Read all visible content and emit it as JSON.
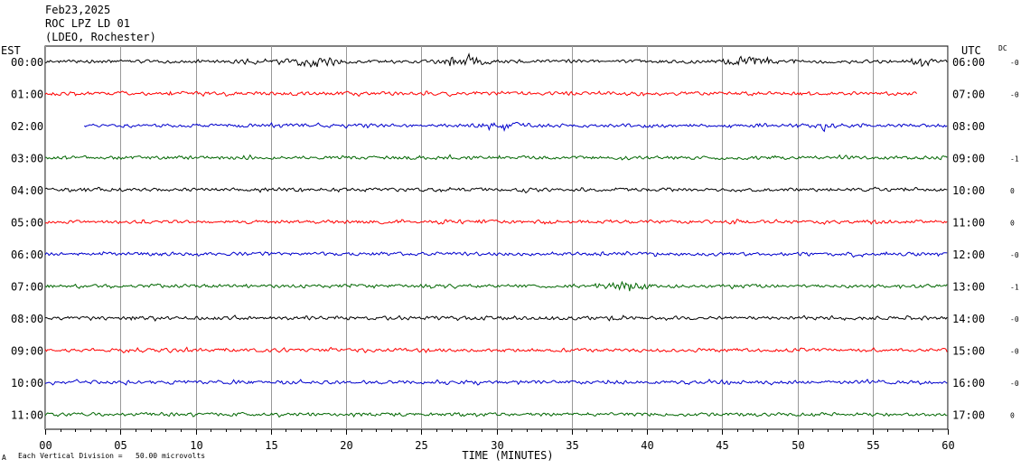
{
  "header": {
    "date": "Feb23,2025",
    "station": "ROC LPZ LD 01",
    "network": "(LDEO, Rochester)",
    "left_zone": "EST",
    "right_zone": "UTC",
    "dc_label": "DC"
  },
  "footer": {
    "scale_note": "Each Vertical Division =   50.00 microvolts",
    "mark": "A"
  },
  "chart_data": {
    "type": "line",
    "title": "",
    "xlabel": "TIME (MINUTES)",
    "ylabel": "",
    "xlim": [
      0,
      60
    ],
    "x_ticks": [
      "00",
      "05",
      "10",
      "15",
      "20",
      "25",
      "30",
      "35",
      "40",
      "45",
      "50",
      "55",
      "60"
    ],
    "grid": true,
    "series": [
      {
        "left_label": "00:00",
        "right_label": "06:00",
        "dc": "-0",
        "color": "#000000",
        "start_min": 0,
        "end_min": 60
      },
      {
        "left_label": "01:00",
        "right_label": "07:00",
        "dc": "-0",
        "color": "#ff0000",
        "start_min": 0,
        "end_min": 58
      },
      {
        "left_label": "02:00",
        "right_label": "08:00",
        "dc": "",
        "color": "#0000cc",
        "start_min": 2.6,
        "end_min": 60
      },
      {
        "left_label": "03:00",
        "right_label": "09:00",
        "dc": "-1",
        "color": "#006600",
        "start_min": 0,
        "end_min": 60
      },
      {
        "left_label": "04:00",
        "right_label": "10:00",
        "dc": "0",
        "color": "#000000",
        "start_min": 0,
        "end_min": 60
      },
      {
        "left_label": "05:00",
        "right_label": "11:00",
        "dc": "0",
        "color": "#ff0000",
        "start_min": 0,
        "end_min": 60
      },
      {
        "left_label": "06:00",
        "right_label": "12:00",
        "dc": "-0",
        "color": "#0000cc",
        "start_min": 0,
        "end_min": 60
      },
      {
        "left_label": "07:00",
        "right_label": "13:00",
        "dc": "-1",
        "color": "#006600",
        "start_min": 0,
        "end_min": 60
      },
      {
        "left_label": "08:00",
        "right_label": "14:00",
        "dc": "-0",
        "color": "#000000",
        "start_min": 0,
        "end_min": 60
      },
      {
        "left_label": "09:00",
        "right_label": "15:00",
        "dc": "-0",
        "color": "#ff0000",
        "start_min": 0,
        "end_min": 60
      },
      {
        "left_label": "10:00",
        "right_label": "16:00",
        "dc": "-0",
        "color": "#0000cc",
        "start_min": 0,
        "end_min": 60
      },
      {
        "left_label": "11:00",
        "right_label": "17:00",
        "dc": "0",
        "color": "#006600",
        "start_min": 0,
        "end_min": 60
      }
    ]
  }
}
